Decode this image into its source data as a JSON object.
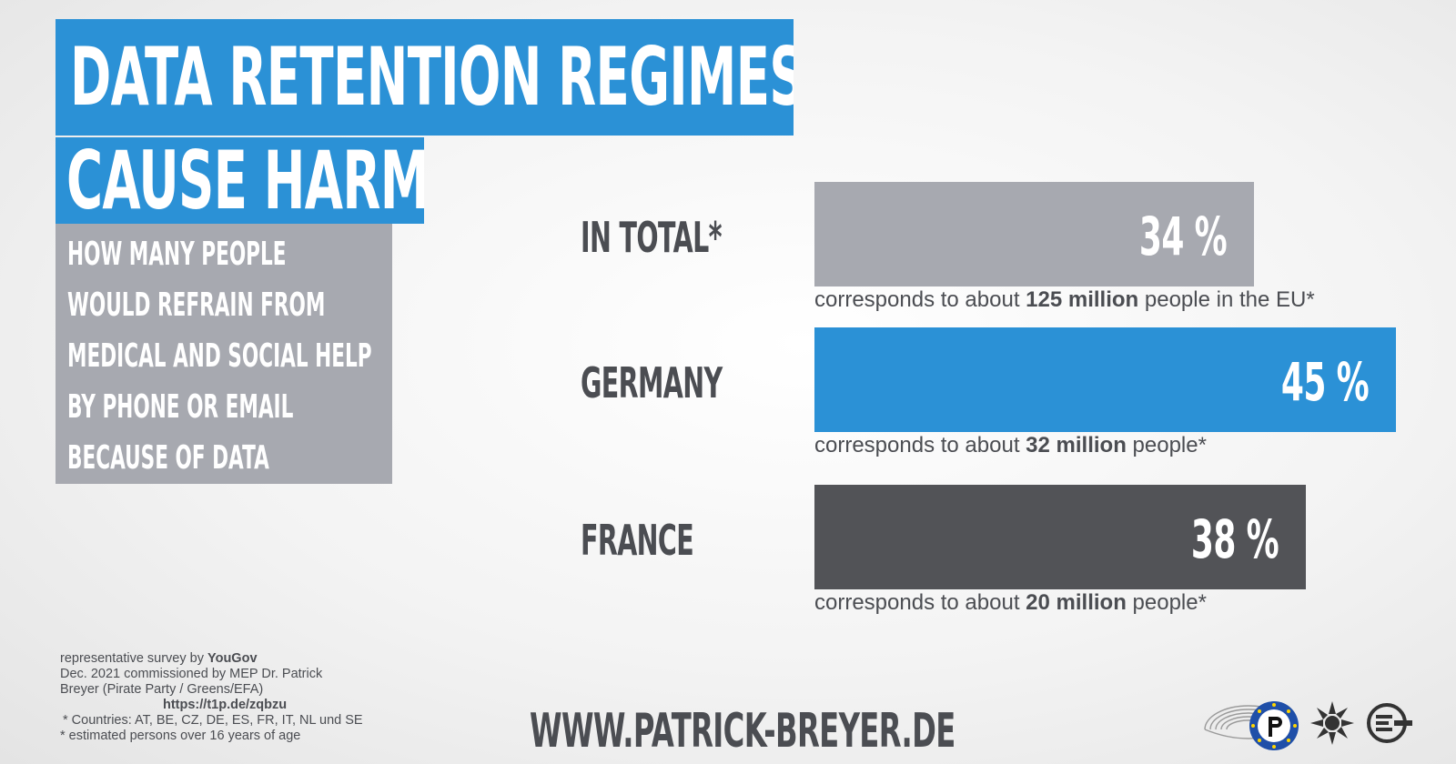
{
  "title": {
    "line1": "DATA RETENTION REGIMES",
    "line2": "CAUSE HARM"
  },
  "question": "HOW MANY PEOPLE WOULD REFRAIN FROM MEDICAL AND SOCIAL HELP BY PHONE OR EMAIL BECAUSE OF DATA RETENTION ?",
  "chart_data": {
    "type": "bar",
    "orientation": "horizontal",
    "title": "DATA RETENTION REGIMES CAUSE HARM",
    "categories": [
      "IN TOTAL*",
      "GERMANY",
      "FRANCE"
    ],
    "values": [
      34,
      45,
      38
    ],
    "value_labels": [
      "34 %",
      "45 %",
      "38 %"
    ],
    "unit": "%",
    "colors": [
      "#a7a9b0",
      "#2b91d6",
      "#525357"
    ],
    "notes": [
      {
        "pre": "corresponds to about ",
        "bold": "125 million",
        "post": " people  in the EU*"
      },
      {
        "pre": "corresponds to about ",
        "bold": "32 million",
        "post": " people*"
      },
      {
        "pre": "corresponds to about ",
        "bold": "20 million",
        "post": " people*"
      }
    ]
  },
  "footnote": {
    "line1_pre": "representative survey by ",
    "line1_bold": "YouGov",
    "line2": "Dec. 2021 commissioned by MEP Dr. Patrick",
    "line3": "Breyer (Pirate Party / Greens/EFA)",
    "link": "https://t1p.de/zqbzu",
    "countries": "* Countries: AT, BE, CZ, DE, ES, FR, IT, NL und SE",
    "age": "* estimated persons over 16 years of age"
  },
  "website": "WWW.PATRICK-BREYER.DE",
  "logos": [
    "parliament-icon",
    "pirate-party-icon",
    "greens-sunflower-icon",
    "efa-icon"
  ],
  "accent_color": "#2b91d6"
}
